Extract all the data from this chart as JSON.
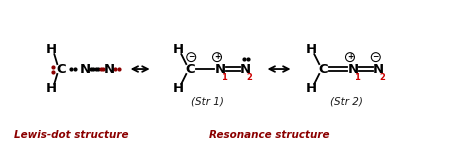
{
  "bg_color": "#ffffff",
  "text_color": "#1a1a1a",
  "red_color": "#8B0000",
  "dark_red": "#cc0000",
  "label_lewis": "Lewis-dot structure",
  "label_resonance": "Resonance structure",
  "str1_label": "(Str 1)",
  "str2_label": "(Str 2)"
}
